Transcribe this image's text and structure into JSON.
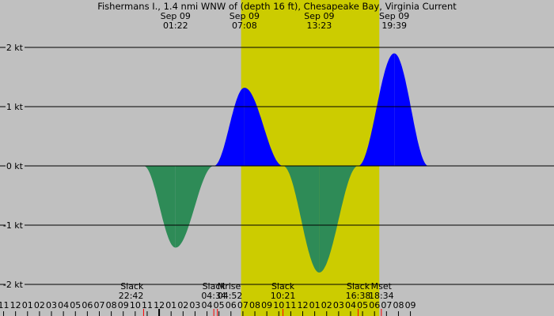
{
  "chart_data": {
    "type": "area",
    "title": "Fishermans I., 1.4 nmi WNW of (depth 16 ft), Chesapeake Bay, Virginia Current",
    "y_unit": "kt",
    "ylim": [
      -2.4,
      2.6
    ],
    "y_ticks": [
      {
        "value": 2,
        "label": "2 kt"
      },
      {
        "value": 1,
        "label": "1 kt"
      },
      {
        "value": 0,
        "label": "0 kt"
      },
      {
        "value": -1,
        "label": "-1 kt"
      },
      {
        "value": -2,
        "label": "-2 kt"
      }
    ],
    "x_range_hours": [
      -13.3,
      33.0
    ],
    "daylight_span_hours": [
      6.85,
      18.4
    ],
    "series": [
      {
        "name": "",
        "points": [
          {
            "time": "22:42",
            "hours": -1.3,
            "value": 0.0
          },
          {
            "time": "01:22",
            "hours": 1.37,
            "value": -1.38
          },
          {
            "time": "04:34",
            "hours": 4.57,
            "value": 0.0
          },
          {
            "time": "07:08",
            "hours": 7.13,
            "value": 1.32
          },
          {
            "time": "10:21",
            "hours": 10.35,
            "value": 0.0
          },
          {
            "time": "13:23",
            "hours": 13.38,
            "value": -1.8
          },
          {
            "time": "16:38",
            "hours": 16.63,
            "value": 0.0
          },
          {
            "time": "19:39",
            "hours": 19.65,
            "value": 1.9
          },
          {
            "time": "22:30",
            "hours": 22.5,
            "value": 0.0
          }
        ]
      }
    ],
    "top_labels": [
      {
        "hours": 1.37,
        "date": "Sep 09",
        "time": "01:22"
      },
      {
        "hours": 7.13,
        "date": "Sep 09",
        "time": "07:08"
      },
      {
        "hours": 13.38,
        "date": "Sep 09",
        "time": "13:23"
      },
      {
        "hours": 19.65,
        "date": "Sep 09",
        "time": "19:39"
      }
    ],
    "bottom_events": [
      {
        "hours": -1.3,
        "name": "Slack",
        "time": "22:42",
        "anchor": "end"
      },
      {
        "hours": 4.57,
        "name": "Slack",
        "time": "04:34",
        "anchor": "middle"
      },
      {
        "hours": 4.87,
        "name": "Mrise",
        "time": "04:52",
        "anchor": "start"
      },
      {
        "hours": 10.35,
        "name": "Slack",
        "time": "10:21",
        "anchor": "middle"
      },
      {
        "hours": 16.63,
        "name": "Slack",
        "time": "16:38",
        "anchor": "middle"
      },
      {
        "hours": 18.57,
        "name": "Mset",
        "time": "18:34",
        "anchor": "middle"
      }
    ],
    "hour_ticks": [
      {
        "hours": -13,
        "label": "11"
      },
      {
        "hours": -12,
        "label": "12"
      },
      {
        "hours": -11,
        "label": "01"
      },
      {
        "hours": -10,
        "label": "02"
      },
      {
        "hours": -9,
        "label": "03"
      },
      {
        "hours": -8,
        "label": "04"
      },
      {
        "hours": -7,
        "label": "05"
      },
      {
        "hours": -6,
        "label": "06"
      },
      {
        "hours": -5,
        "label": "07"
      },
      {
        "hours": -4,
        "label": "08"
      },
      {
        "hours": -3,
        "label": "09"
      },
      {
        "hours": -2,
        "label": "10"
      },
      {
        "hours": -1,
        "label": "11"
      },
      {
        "hours": 0,
        "label": "12"
      },
      {
        "hours": 1,
        "label": "01"
      },
      {
        "hours": 2,
        "label": "02"
      },
      {
        "hours": 3,
        "label": "03"
      },
      {
        "hours": 4,
        "label": "04"
      },
      {
        "hours": 5,
        "label": "05"
      },
      {
        "hours": 6,
        "label": "06"
      },
      {
        "hours": 7,
        "label": "07"
      },
      {
        "hours": 8,
        "label": "08"
      },
      {
        "hours": 9,
        "label": "09"
      },
      {
        "hours": 10,
        "label": "10"
      },
      {
        "hours": 11,
        "label": "11"
      },
      {
        "hours": 12,
        "label": "12"
      },
      {
        "hours": 13,
        "label": "01"
      },
      {
        "hours": 14,
        "label": "02"
      },
      {
        "hours": 15,
        "label": "03"
      },
      {
        "hours": 16,
        "label": "04"
      },
      {
        "hours": 17,
        "label": "05"
      },
      {
        "hours": 18,
        "label": "06"
      },
      {
        "hours": 19,
        "label": "07"
      },
      {
        "hours": 20,
        "label": "08"
      },
      {
        "hours": 21,
        "label": "09"
      }
    ],
    "colors": {
      "background": "#c0c0c0",
      "daylight": "#cccc00",
      "flood": "#0000ff",
      "ebb": "#2e8b57",
      "grid": "#000000",
      "event_tick": "#ff0000"
    }
  }
}
